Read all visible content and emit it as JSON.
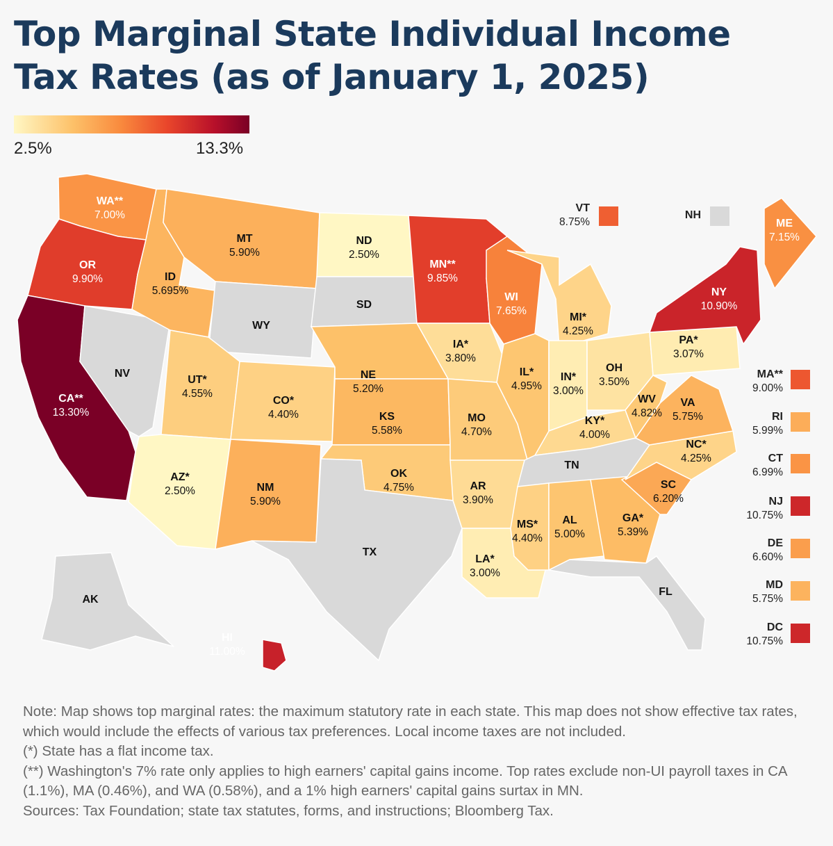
{
  "title": "Top Marginal State Individual Income Tax Rates (as of January 1, 2025)",
  "legend": {
    "min_label": "2.5%",
    "max_label": "13.3%",
    "min_value": 2.5,
    "max_value": 13.3
  },
  "map_data": {
    "no_tax_color": "#d9d9d9",
    "states": [
      {
        "code": "WA**",
        "rate": "7.00%",
        "value": 7.0
      },
      {
        "code": "OR",
        "rate": "9.90%",
        "value": 9.9
      },
      {
        "code": "CA**",
        "rate": "13.30%",
        "value": 13.3
      },
      {
        "code": "NV",
        "rate": "",
        "value": null
      },
      {
        "code": "ID",
        "rate": "5.695%",
        "value": 5.695
      },
      {
        "code": "MT",
        "rate": "5.90%",
        "value": 5.9
      },
      {
        "code": "WY",
        "rate": "",
        "value": null
      },
      {
        "code": "UT*",
        "rate": "4.55%",
        "value": 4.55
      },
      {
        "code": "AZ*",
        "rate": "2.50%",
        "value": 2.5
      },
      {
        "code": "CO*",
        "rate": "4.40%",
        "value": 4.4
      },
      {
        "code": "NM",
        "rate": "5.90%",
        "value": 5.9
      },
      {
        "code": "ND",
        "rate": "2.50%",
        "value": 2.5
      },
      {
        "code": "SD",
        "rate": "",
        "value": null
      },
      {
        "code": "NE",
        "rate": "5.20%",
        "value": 5.2
      },
      {
        "code": "KS",
        "rate": "5.58%",
        "value": 5.58
      },
      {
        "code": "OK",
        "rate": "4.75%",
        "value": 4.75
      },
      {
        "code": "TX",
        "rate": "",
        "value": null
      },
      {
        "code": "MN**",
        "rate": "9.85%",
        "value": 9.85
      },
      {
        "code": "IA*",
        "rate": "3.80%",
        "value": 3.8
      },
      {
        "code": "MO",
        "rate": "4.70%",
        "value": 4.7
      },
      {
        "code": "AR",
        "rate": "3.90%",
        "value": 3.9
      },
      {
        "code": "LA*",
        "rate": "3.00%",
        "value": 3.0
      },
      {
        "code": "WI",
        "rate": "7.65%",
        "value": 7.65
      },
      {
        "code": "IL*",
        "rate": "4.95%",
        "value": 4.95
      },
      {
        "code": "MI*",
        "rate": "4.25%",
        "value": 4.25
      },
      {
        "code": "IN*",
        "rate": "3.00%",
        "value": 3.0
      },
      {
        "code": "OH",
        "rate": "3.50%",
        "value": 3.5
      },
      {
        "code": "KY*",
        "rate": "4.00%",
        "value": 4.0
      },
      {
        "code": "TN",
        "rate": "",
        "value": null
      },
      {
        "code": "MS*",
        "rate": "4.40%",
        "value": 4.4
      },
      {
        "code": "AL",
        "rate": "5.00%",
        "value": 5.0
      },
      {
        "code": "GA*",
        "rate": "5.39%",
        "value": 5.39
      },
      {
        "code": "FL",
        "rate": "",
        "value": null
      },
      {
        "code": "SC",
        "rate": "6.20%",
        "value": 6.2
      },
      {
        "code": "NC*",
        "rate": "4.25%",
        "value": 4.25
      },
      {
        "code": "VA",
        "rate": "5.75%",
        "value": 5.75
      },
      {
        "code": "WV",
        "rate": "4.82%",
        "value": 4.82
      },
      {
        "code": "PA*",
        "rate": "3.07%",
        "value": 3.07
      },
      {
        "code": "NY",
        "rate": "10.90%",
        "value": 10.9
      },
      {
        "code": "ME",
        "rate": "7.15%",
        "value": 7.15
      },
      {
        "code": "AK",
        "rate": "",
        "value": null
      },
      {
        "code": "HI",
        "rate": "11.00%",
        "value": 11.0
      }
    ],
    "side_labels": [
      {
        "code": "VT",
        "rate": "8.75%",
        "value": 8.75
      },
      {
        "code": "NH",
        "rate": "",
        "value": null
      },
      {
        "code": "MA**",
        "rate": "9.00%",
        "value": 9.0
      },
      {
        "code": "RI",
        "rate": "5.99%",
        "value": 5.99
      },
      {
        "code": "CT",
        "rate": "6.99%",
        "value": 6.99
      },
      {
        "code": "NJ",
        "rate": "10.75%",
        "value": 10.75
      },
      {
        "code": "DE",
        "rate": "6.60%",
        "value": 6.6
      },
      {
        "code": "MD",
        "rate": "5.75%",
        "value": 5.75
      },
      {
        "code": "DC",
        "rate": "10.75%",
        "value": 10.75
      }
    ]
  },
  "notes": [
    "Note: Map shows top marginal rates: the maximum statutory rate in each state. This map does not show effective tax rates, which would include the effects of various tax preferences. Local income taxes are not included.",
    "(*) State has a flat income tax.",
    "(**) Washington's 7% rate only applies to high earners' capital gains income. Top rates exclude non-UI payroll taxes in CA (1.1%), MA (0.46%), and WA (0.58%), and a 1% high earners' capital gains surtax in MN.",
    "Sources: Tax Foundation; state tax statutes, forms, and instructions; Bloomberg Tax."
  ]
}
